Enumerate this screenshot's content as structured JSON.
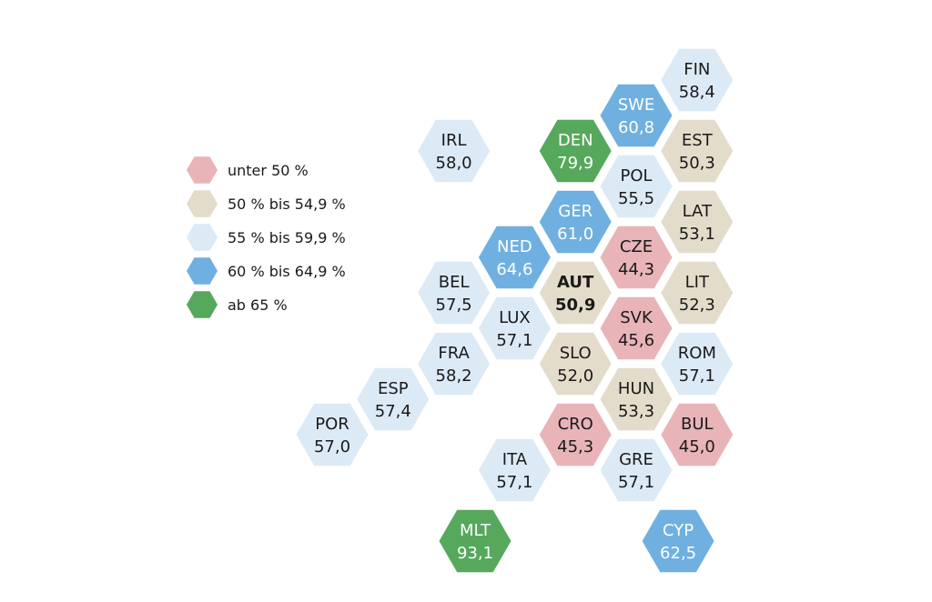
{
  "legend": [
    {
      "label": "unter 50 %",
      "color": "#e8b4b8"
    },
    {
      "label": "50 % bis 54,9 %",
      "color": "#e4dccb"
    },
    {
      "label": "55 % bis 59,9 %",
      "color": "#dceaf6"
    },
    {
      "label": "60 % bis 64,9 %",
      "color": "#6fb0e0"
    },
    {
      "label": "ab 65 %",
      "color": "#56a85c"
    }
  ],
  "chart_data": {
    "type": "hex-tile-map",
    "highlight": "AUT",
    "countries": [
      {
        "code": "FIN",
        "value": "58,4"
      },
      {
        "code": "SWE",
        "value": "60,8"
      },
      {
        "code": "IRL",
        "value": "58,0"
      },
      {
        "code": "DEN",
        "value": "79,9"
      },
      {
        "code": "EST",
        "value": "50,3"
      },
      {
        "code": "POL",
        "value": "55,5"
      },
      {
        "code": "GER",
        "value": "61,0"
      },
      {
        "code": "LAT",
        "value": "53,1"
      },
      {
        "code": "NED",
        "value": "64,6"
      },
      {
        "code": "CZE",
        "value": "44,3"
      },
      {
        "code": "BEL",
        "value": "57,5"
      },
      {
        "code": "AUT",
        "value": "50,9"
      },
      {
        "code": "LIT",
        "value": "52,3"
      },
      {
        "code": "LUX",
        "value": "57,1"
      },
      {
        "code": "SVK",
        "value": "45,6"
      },
      {
        "code": "FRA",
        "value": "58,2"
      },
      {
        "code": "SLO",
        "value": "52,0"
      },
      {
        "code": "ROM",
        "value": "57,1"
      },
      {
        "code": "ESP",
        "value": "57,4"
      },
      {
        "code": "HUN",
        "value": "53,3"
      },
      {
        "code": "POR",
        "value": "57,0"
      },
      {
        "code": "CRO",
        "value": "45,3"
      },
      {
        "code": "BUL",
        "value": "45,0"
      },
      {
        "code": "ITA",
        "value": "57,1"
      },
      {
        "code": "GRE",
        "value": "57,1"
      },
      {
        "code": "MLT",
        "value": "93,1"
      },
      {
        "code": "CYP",
        "value": "62,5"
      }
    ]
  }
}
